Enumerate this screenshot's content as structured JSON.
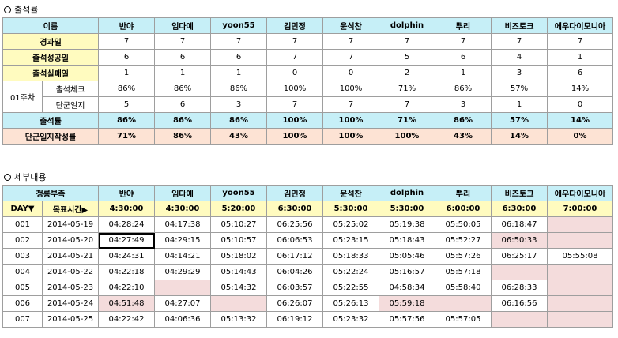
{
  "section1": {
    "title": "출석률"
  },
  "section2": {
    "title": "세부내용"
  },
  "names": [
    "반야",
    "임다예",
    "yoon55",
    "김민정",
    "윤석찬",
    "dolphin",
    "뿌리",
    "비즈토크",
    "에우다이모니아"
  ],
  "attendance": {
    "header": "이름",
    "week_label": "01주차",
    "rows": [
      {
        "label": "경과일",
        "values": [
          "7",
          "7",
          "7",
          "7",
          "7",
          "7",
          "7",
          "7",
          "7"
        ]
      },
      {
        "label": "출석성공일",
        "values": [
          "6",
          "6",
          "6",
          "7",
          "7",
          "5",
          "6",
          "4",
          "1"
        ]
      },
      {
        "label": "출석실패일",
        "values": [
          "1",
          "1",
          "1",
          "0",
          "0",
          "2",
          "1",
          "3",
          "6"
        ]
      },
      {
        "label": "출석체크",
        "values": [
          "86%",
          "86%",
          "86%",
          "100%",
          "100%",
          "71%",
          "86%",
          "57%",
          "14%"
        ]
      },
      {
        "label": "단군일지",
        "values": [
          "5",
          "6",
          "3",
          "7",
          "7",
          "7",
          "3",
          "1",
          "0"
        ]
      }
    ],
    "rate_row": {
      "label": "출석률",
      "values": [
        "86%",
        "86%",
        "86%",
        "100%",
        "100%",
        "71%",
        "86%",
        "57%",
        "14%"
      ]
    },
    "journal_row": {
      "label": "단군일지작성률",
      "values": [
        "71%",
        "86%",
        "43%",
        "100%",
        "100%",
        "100%",
        "43%",
        "14%",
        "0%"
      ]
    }
  },
  "detail": {
    "header": "청룡부족",
    "day_label": "DAY▼",
    "target_label": "목표시간▶",
    "targets": [
      "4:30:00",
      "4:30:00",
      "5:20:00",
      "6:30:00",
      "5:30:00",
      "5:30:00",
      "6:00:00",
      "6:30:00",
      "7:00:00"
    ],
    "rows": [
      {
        "day": "001",
        "date": "2014-05-19",
        "times": [
          "04:28:24",
          "04:17:38",
          "05:10:27",
          "06:25:56",
          "05:25:02",
          "05:19:38",
          "05:50:05",
          "06:18:47",
          ""
        ]
      },
      {
        "day": "002",
        "date": "2014-05-20",
        "times": [
          "04:27:49",
          "04:29:15",
          "05:10:57",
          "06:06:53",
          "05:23:15",
          "05:18:43",
          "05:52:27",
          "06:50:33",
          ""
        ]
      },
      {
        "day": "003",
        "date": "2014-05-21",
        "times": [
          "04:24:31",
          "04:14:21",
          "05:18:02",
          "06:17:12",
          "05:18:33",
          "05:05:46",
          "05:57:26",
          "06:25:17",
          "05:55:08"
        ]
      },
      {
        "day": "004",
        "date": "2014-05-22",
        "times": [
          "04:22:18",
          "04:29:29",
          "05:14:43",
          "06:04:26",
          "05:22:24",
          "05:16:57",
          "05:57:18",
          "",
          ""
        ]
      },
      {
        "day": "005",
        "date": "2014-05-23",
        "times": [
          "04:22:10",
          "",
          "05:14:32",
          "06:03:57",
          "05:22:55",
          "04:58:34",
          "05:58:40",
          "06:28:33",
          ""
        ]
      },
      {
        "day": "006",
        "date": "2014-05-24",
        "times": [
          "04:51:48",
          "04:27:07",
          "",
          "06:26:07",
          "05:26:13",
          "05:59:18",
          "",
          "06:16:56",
          ""
        ]
      },
      {
        "day": "007",
        "date": "2014-05-25",
        "times": [
          "04:22:42",
          "04:06:36",
          "05:13:32",
          "06:19:12",
          "05:23:32",
          "05:57:56",
          "05:57:05",
          "",
          ""
        ]
      }
    ],
    "pink_cells": [
      [
        0,
        8
      ],
      [
        1,
        7
      ],
      [
        1,
        8
      ],
      [
        3,
        7
      ],
      [
        3,
        8
      ],
      [
        4,
        1
      ],
      [
        4,
        8
      ],
      [
        5,
        0
      ],
      [
        5,
        2
      ],
      [
        5,
        5
      ],
      [
        5,
        6
      ],
      [
        5,
        8
      ],
      [
        6,
        7
      ],
      [
        6,
        8
      ]
    ],
    "selected_cell": [
      1,
      0
    ]
  }
}
